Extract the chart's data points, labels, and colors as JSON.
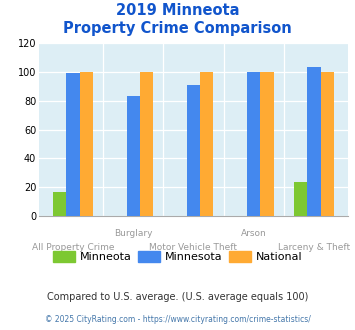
{
  "title_line1": "2019 Minneota",
  "title_line2": "Property Crime Comparison",
  "minneota": [
    17,
    0,
    0,
    0,
    24
  ],
  "minnesota": [
    99,
    83,
    91,
    100,
    103
  ],
  "national": [
    100,
    100,
    100,
    100,
    100
  ],
  "color_minneota": "#7dc832",
  "color_minnesota": "#4488ee",
  "color_national": "#ffaa33",
  "ylim": [
    0,
    120
  ],
  "yticks": [
    0,
    20,
    40,
    60,
    80,
    100,
    120
  ],
  "plot_bg": "#ddeef5",
  "title_bg": "#ffffff",
  "title_color": "#1155cc",
  "xlabel_color": "#999999",
  "compare_text": "Compared to U.S. average. (U.S. average equals 100)",
  "compare_color": "#333333",
  "footer_text": "© 2025 CityRating.com - https://www.cityrating.com/crime-statistics/",
  "footer_color": "#4477aa",
  "legend_labels": [
    "Minneota",
    "Minnesota",
    "National"
  ]
}
